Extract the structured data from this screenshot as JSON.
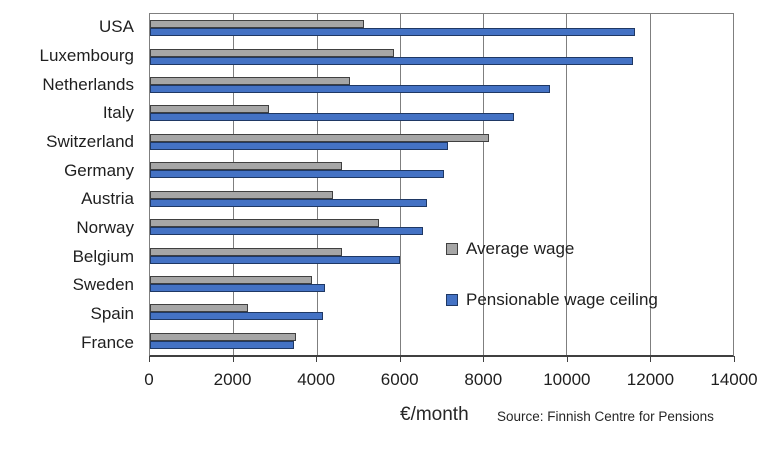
{
  "chart_data": {
    "type": "bar",
    "orientation": "horizontal",
    "categories": [
      "USA",
      "Luxembourg",
      "Netherlands",
      "Italy",
      "Switzerland",
      "Germany",
      "Austria",
      "Norway",
      "Belgium",
      "Sweden",
      "Spain",
      "France"
    ],
    "series": [
      {
        "name": "Average wage",
        "color": "#A6A6A6",
        "border_color": "#404040",
        "values": [
          5150,
          5850,
          4800,
          2850,
          8150,
          4600,
          4400,
          5500,
          4600,
          3900,
          2350,
          3500
        ]
      },
      {
        "name": "Pensionable wage ceiling",
        "color": "#4472C4",
        "border_color": "#1F3864",
        "values": [
          11650,
          11600,
          9600,
          8750,
          7150,
          7050,
          6650,
          6550,
          6000,
          4200,
          4150,
          3450
        ]
      }
    ],
    "xlabel": "€/month",
    "x_ticks": [
      0,
      2000,
      4000,
      6000,
      8000,
      10000,
      12000,
      14000
    ],
    "xlim": [
      0,
      14000
    ],
    "grid": "vertical",
    "legend_position": "inside-right",
    "source": "Source: Finnish Centre for Pensions"
  },
  "colors": {
    "gridline": "#7f7f7f",
    "axis_line": "#404040",
    "text": "#1f1f1f"
  }
}
